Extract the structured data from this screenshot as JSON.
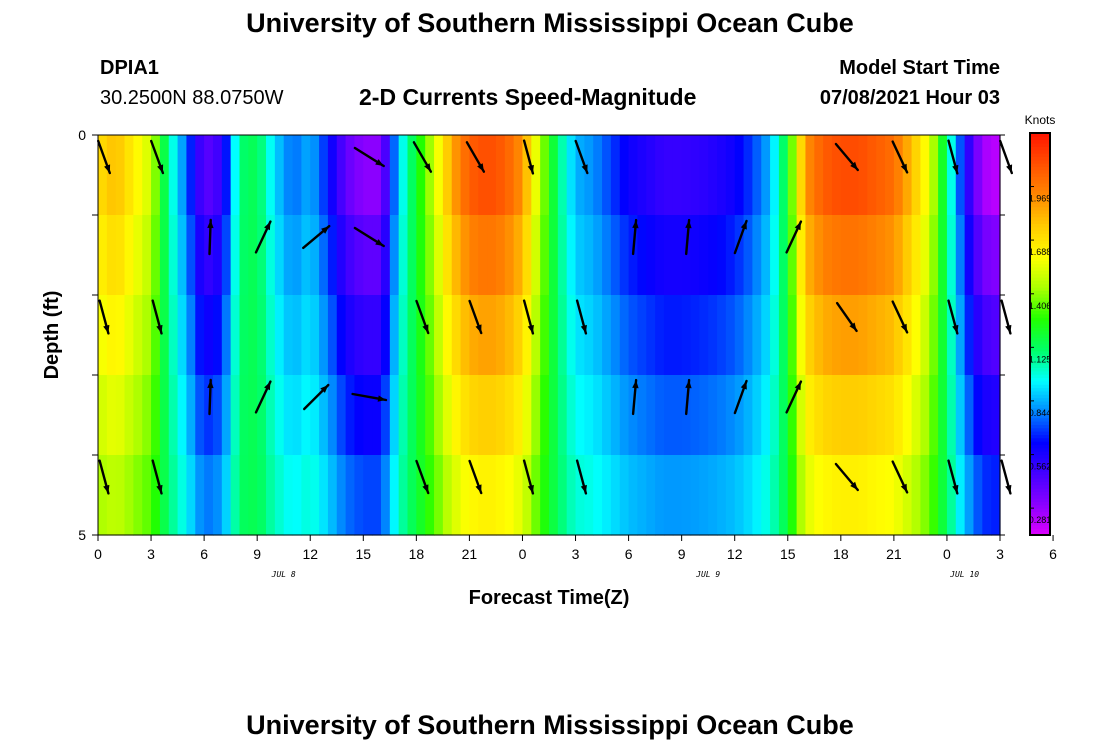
{
  "header": {
    "title": "University of Southern Mississippi Ocean Cube",
    "station_id": "DPIA1",
    "station_coords": "30.2500N  88.0750W",
    "subtitle": "2-D Currents Speed-Magnitude",
    "model_start_label": "Model Start Time",
    "model_start_value": "07/08/2021 Hour 03"
  },
  "footer": {
    "title": "University of Southern Mississippi Ocean Cube"
  },
  "chart_data": {
    "type": "heatmap",
    "title": "2-D Currents Speed-Magnitude",
    "xlabel": "Forecast Time(Z)",
    "ylabel": "Depth (ft)",
    "x_range_hours": [
      0,
      51
    ],
    "y_range_ft": [
      0,
      5
    ],
    "x_tick_labels": [
      "0",
      "3",
      "6",
      "9",
      "12",
      "15",
      "18",
      "21",
      "0",
      "3",
      "6",
      "9",
      "12",
      "15",
      "18",
      "21",
      "0",
      "3",
      "6"
    ],
    "y_tick_labels": [
      "0",
      "5"
    ],
    "date_labels": [
      {
        "text": "JUL 8",
        "hour": 10.5
      },
      {
        "text": "JUL 9",
        "hour": 34.5
      },
      {
        "text": "JUL 10",
        "hour": 49
      }
    ],
    "colorbar": {
      "unit": "Knots",
      "min": 0.14,
      "max": 2.25,
      "tick_values": [
        0.281,
        0.562,
        0.844,
        1.125,
        1.406,
        1.688,
        1.969
      ],
      "tick_labels": [
        "0.281",
        "0.562",
        "0.844",
        "1.125",
        "1.406",
        "1.688",
        "1.969"
      ],
      "colors": [
        "#dd00ff",
        "#8a00ff",
        "#4400ff",
        "#0000ff",
        "#0088ff",
        "#00ffff",
        "#00ff66",
        "#22ff00",
        "#aaff00",
        "#ffff00",
        "#ffcc00",
        "#ff8800",
        "#ff5000",
        "#ff1500"
      ]
    },
    "depth_rows_ft": [
      0,
      1,
      2,
      3,
      4,
      5
    ],
    "speed_profile": {
      "hours": [
        0,
        1,
        2,
        3,
        4,
        5,
        6,
        7,
        8,
        9,
        10,
        11,
        12,
        13,
        14,
        15,
        16,
        17,
        18,
        19,
        20,
        21,
        22,
        23,
        24,
        25,
        26,
        27,
        28,
        29,
        30,
        31,
        32,
        33,
        34,
        35,
        36,
        37,
        38,
        39,
        40,
        41,
        42,
        43,
        44,
        45,
        46,
        47,
        48,
        49,
        50,
        51
      ],
      "surface_knots": [
        1.7,
        1.8,
        1.65,
        1.5,
        1.05,
        0.75,
        0.4,
        0.5,
        1.1,
        1.15,
        0.9,
        0.75,
        0.85,
        0.65,
        0.4,
        0.3,
        0.3,
        0.9,
        1.2,
        1.5,
        1.85,
        2.05,
        2.1,
        2.05,
        1.9,
        1.45,
        1.1,
        0.85,
        0.8,
        0.7,
        0.6,
        0.55,
        0.5,
        0.5,
        0.52,
        0.55,
        0.6,
        0.7,
        0.85,
        1.2,
        1.9,
        2.05,
        2.1,
        2.1,
        2.05,
        2.0,
        1.8,
        1.55,
        1.1,
        0.6,
        0.25,
        0.2
      ]
    },
    "vector_arrows": [
      {
        "hour": 0,
        "depth_ft": 0,
        "dir_deg": 160
      },
      {
        "hour": 3,
        "depth_ft": 0,
        "dir_deg": 160
      },
      {
        "hour": 15,
        "depth_ft": 0,
        "dir_deg": 122
      },
      {
        "hour": 18,
        "depth_ft": 0,
        "dir_deg": 150
      },
      {
        "hour": 21,
        "depth_ft": 0,
        "dir_deg": 150
      },
      {
        "hour": 24,
        "depth_ft": 0,
        "dir_deg": 165
      },
      {
        "hour": 27,
        "depth_ft": 0,
        "dir_deg": 160
      },
      {
        "hour": 42,
        "depth_ft": 0,
        "dir_deg": 140
      },
      {
        "hour": 45,
        "depth_ft": 0,
        "dir_deg": 155
      },
      {
        "hour": 48,
        "depth_ft": 0,
        "dir_deg": 165
      },
      {
        "hour": 51,
        "depth_ft": 0,
        "dir_deg": 160
      },
      {
        "hour": 6,
        "depth_ft": 1,
        "dir_deg": 2
      },
      {
        "hour": 9,
        "depth_ft": 1,
        "dir_deg": 25
      },
      {
        "hour": 12,
        "depth_ft": 1,
        "dir_deg": 50
      },
      {
        "hour": 15,
        "depth_ft": 1,
        "dir_deg": 122
      },
      {
        "hour": 30,
        "depth_ft": 1,
        "dir_deg": 5
      },
      {
        "hour": 33,
        "depth_ft": 1,
        "dir_deg": 5
      },
      {
        "hour": 36,
        "depth_ft": 1,
        "dir_deg": 20
      },
      {
        "hour": 39,
        "depth_ft": 1,
        "dir_deg": 25
      },
      {
        "hour": 0,
        "depth_ft": 2,
        "dir_deg": 165
      },
      {
        "hour": 3,
        "depth_ft": 2,
        "dir_deg": 165
      },
      {
        "hour": 18,
        "depth_ft": 2,
        "dir_deg": 160
      },
      {
        "hour": 21,
        "depth_ft": 2,
        "dir_deg": 160
      },
      {
        "hour": 24,
        "depth_ft": 2,
        "dir_deg": 165
      },
      {
        "hour": 27,
        "depth_ft": 2,
        "dir_deg": 165
      },
      {
        "hour": 42,
        "depth_ft": 2,
        "dir_deg": 145
      },
      {
        "hour": 45,
        "depth_ft": 2,
        "dir_deg": 155
      },
      {
        "hour": 48,
        "depth_ft": 2,
        "dir_deg": 165
      },
      {
        "hour": 51,
        "depth_ft": 2,
        "dir_deg": 165
      },
      {
        "hour": 6,
        "depth_ft": 3,
        "dir_deg": 2
      },
      {
        "hour": 9,
        "depth_ft": 3,
        "dir_deg": 25
      },
      {
        "hour": 12,
        "depth_ft": 3,
        "dir_deg": 45
      },
      {
        "hour": 15,
        "depth_ft": 3,
        "dir_deg": 100
      },
      {
        "hour": 30,
        "depth_ft": 3,
        "dir_deg": 5
      },
      {
        "hour": 33,
        "depth_ft": 3,
        "dir_deg": 5
      },
      {
        "hour": 36,
        "depth_ft": 3,
        "dir_deg": 20
      },
      {
        "hour": 39,
        "depth_ft": 3,
        "dir_deg": 25
      },
      {
        "hour": 0,
        "depth_ft": 4,
        "dir_deg": 165
      },
      {
        "hour": 3,
        "depth_ft": 4,
        "dir_deg": 165
      },
      {
        "hour": 18,
        "depth_ft": 4,
        "dir_deg": 160
      },
      {
        "hour": 21,
        "depth_ft": 4,
        "dir_deg": 160
      },
      {
        "hour": 24,
        "depth_ft": 4,
        "dir_deg": 165
      },
      {
        "hour": 27,
        "depth_ft": 4,
        "dir_deg": 165
      },
      {
        "hour": 42,
        "depth_ft": 4,
        "dir_deg": 140
      },
      {
        "hour": 45,
        "depth_ft": 4,
        "dir_deg": 155
      },
      {
        "hour": 48,
        "depth_ft": 4,
        "dir_deg": 165
      },
      {
        "hour": 51,
        "depth_ft": 4,
        "dir_deg": 165
      }
    ]
  }
}
